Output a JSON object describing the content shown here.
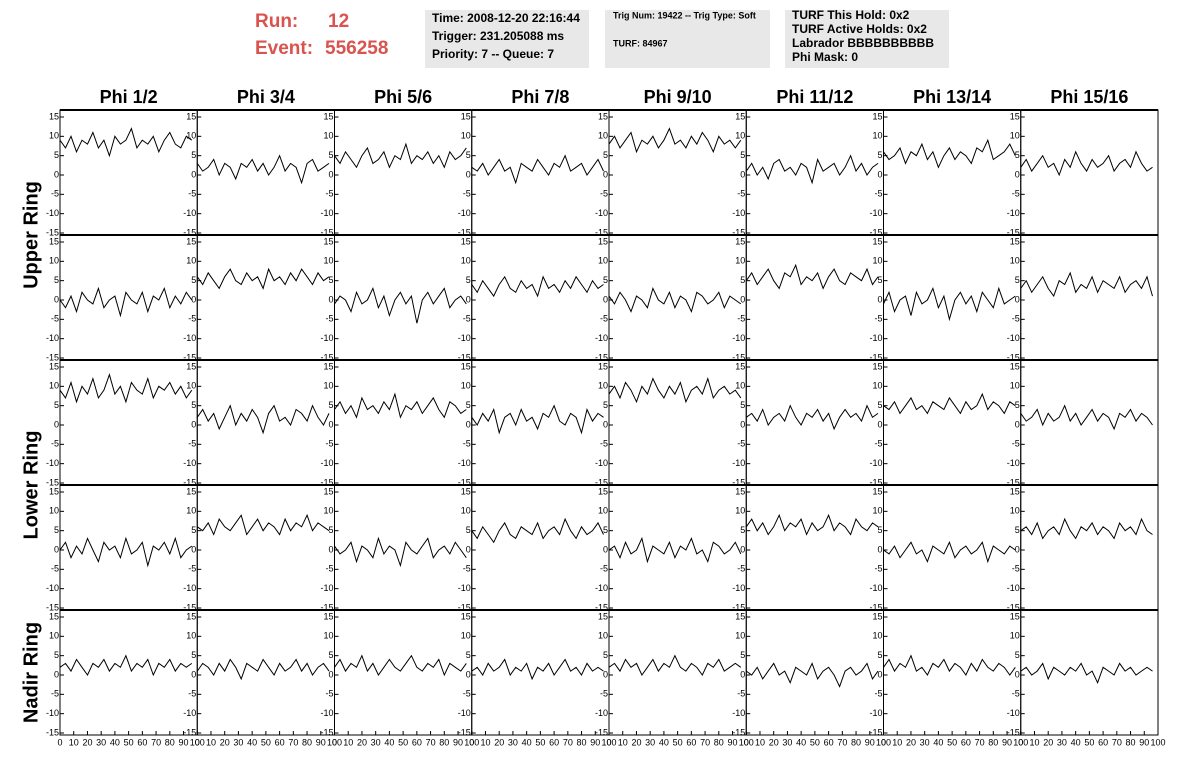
{
  "header": {
    "run_label": "Run:",
    "run": "12",
    "event_label": "Event:",
    "event": "556258",
    "box1": [
      "Time: 2008-12-20 22:16:44",
      "Trigger: 231.205088 ms",
      "Priority: 7 -- Queue: 7"
    ],
    "box2": [
      "Trig Num: 19422 -- Trig Type: Soft",
      "TURF: 84967"
    ],
    "box3": [
      "TURF This Hold: 0x2",
      "TURF Active Holds: 0x2",
      "Labrador BBBBBBBBBB",
      "Phi Mask: 0"
    ]
  },
  "chart_data": {
    "type": "line",
    "columns": [
      "Phi 1/2",
      "Phi 3/4",
      "Phi 5/6",
      "Phi 7/8",
      "Phi 9/10",
      "Phi 11/12",
      "Phi 13/14",
      "Phi 15/16"
    ],
    "ring_labels": [
      "Upper Ring",
      "Lower Ring",
      "Nadir Ring"
    ],
    "x": [
      0,
      4,
      8,
      12,
      16,
      20,
      24,
      28,
      32,
      36,
      40,
      44,
      48,
      52,
      56,
      60,
      64,
      68,
      72,
      76,
      80,
      84,
      88,
      92,
      96
    ],
    "xlim": [
      0,
      100
    ],
    "xticks": [
      0,
      10,
      20,
      30,
      40,
      50,
      60,
      70,
      80,
      90,
      100
    ],
    "ylim": [
      -15,
      15
    ],
    "yticks": [
      -15,
      -10,
      -5,
      0,
      5,
      10,
      15
    ],
    "color": "#000000",
    "panels": [
      {
        "values": [
          9,
          7,
          10,
          6,
          9,
          8,
          11,
          7,
          9,
          5,
          10,
          8,
          9,
          12,
          7,
          9,
          8,
          10,
          6,
          9,
          11,
          8,
          7,
          10,
          9
        ]
      },
      {
        "values": [
          3,
          1,
          2,
          4,
          0,
          3,
          2,
          -1,
          3,
          2,
          4,
          1,
          3,
          0,
          2,
          5,
          1,
          3,
          2,
          -2,
          3,
          4,
          1,
          2,
          3
        ]
      },
      {
        "values": [
          5,
          3,
          6,
          4,
          2,
          5,
          7,
          3,
          4,
          6,
          2,
          5,
          4,
          8,
          3,
          5,
          4,
          6,
          3,
          5,
          2,
          6,
          4,
          5,
          7
        ]
      },
      {
        "values": [
          2,
          1,
          3,
          0,
          2,
          4,
          1,
          2,
          -2,
          3,
          2,
          1,
          4,
          2,
          0,
          3,
          2,
          5,
          1,
          2,
          3,
          0,
          2,
          4,
          1
        ]
      },
      {
        "values": [
          8,
          10,
          7,
          9,
          11,
          6,
          9,
          8,
          10,
          7,
          9,
          12,
          8,
          9,
          7,
          10,
          8,
          11,
          9,
          6,
          10,
          8,
          9,
          7,
          9
        ]
      },
      {
        "values": [
          1,
          3,
          0,
          2,
          -1,
          3,
          4,
          1,
          2,
          0,
          3,
          2,
          -2,
          4,
          1,
          2,
          3,
          0,
          2,
          5,
          1,
          3,
          0,
          2,
          3
        ]
      },
      {
        "values": [
          6,
          4,
          5,
          7,
          3,
          6,
          5,
          8,
          4,
          6,
          2,
          5,
          7,
          4,
          6,
          5,
          3,
          7,
          6,
          9,
          4,
          5,
          6,
          8,
          5
        ]
      },
      {
        "values": [
          2,
          4,
          1,
          3,
          5,
          2,
          3,
          0,
          4,
          2,
          6,
          3,
          1,
          4,
          2,
          3,
          5,
          1,
          3,
          4,
          2,
          6,
          3,
          1,
          2
        ]
      },
      {
        "values": [
          0,
          -2,
          1,
          -3,
          2,
          0,
          -1,
          3,
          -2,
          0,
          1,
          -4,
          2,
          0,
          -1,
          2,
          -3,
          1,
          0,
          3,
          -2,
          1,
          -1,
          2,
          0
        ]
      },
      {
        "values": [
          6,
          4,
          7,
          5,
          3,
          6,
          8,
          5,
          4,
          7,
          5,
          6,
          3,
          8,
          5,
          6,
          4,
          7,
          5,
          8,
          6,
          4,
          7,
          5,
          6
        ]
      },
      {
        "values": [
          -1,
          1,
          0,
          -3,
          2,
          -1,
          0,
          3,
          -2,
          1,
          -4,
          0,
          2,
          -1,
          1,
          -6,
          0,
          2,
          -1,
          1,
          3,
          -2,
          0,
          1,
          -1
        ]
      },
      {
        "values": [
          4,
          2,
          5,
          3,
          1,
          4,
          6,
          3,
          2,
          5,
          3,
          4,
          1,
          6,
          3,
          4,
          2,
          5,
          3,
          6,
          4,
          2,
          5,
          3,
          4
        ]
      },
      {
        "values": [
          1,
          -1,
          2,
          0,
          -3,
          1,
          0,
          -2,
          3,
          0,
          -1,
          2,
          -2,
          1,
          0,
          -3,
          2,
          1,
          -1,
          0,
          2,
          -2,
          1,
          0,
          -1
        ]
      },
      {
        "values": [
          5,
          7,
          4,
          6,
          8,
          5,
          3,
          7,
          6,
          9,
          4,
          6,
          5,
          7,
          3,
          6,
          8,
          5,
          4,
          7,
          6,
          5,
          8,
          4,
          6
        ]
      },
      {
        "values": [
          -1,
          2,
          -3,
          0,
          1,
          -4,
          2,
          -1,
          0,
          3,
          -2,
          1,
          -5,
          0,
          2,
          -1,
          1,
          -3,
          2,
          0,
          -2,
          3,
          -1,
          0,
          1
        ]
      },
      {
        "values": [
          3,
          5,
          2,
          4,
          6,
          3,
          1,
          5,
          4,
          7,
          2,
          4,
          3,
          6,
          2,
          5,
          4,
          3,
          6,
          2,
          4,
          5,
          3,
          6,
          1
        ]
      },
      {
        "values": [
          9,
          7,
          11,
          6,
          10,
          8,
          12,
          7,
          9,
          13,
          8,
          10,
          6,
          11,
          9,
          8,
          12,
          7,
          10,
          9,
          11,
          8,
          10,
          7,
          9
        ]
      },
      {
        "values": [
          2,
          4,
          1,
          3,
          -1,
          2,
          5,
          0,
          3,
          1,
          4,
          2,
          -2,
          3,
          5,
          1,
          2,
          0,
          4,
          3,
          1,
          5,
          2,
          0,
          3
        ]
      },
      {
        "values": [
          4,
          6,
          3,
          5,
          2,
          7,
          4,
          5,
          3,
          6,
          4,
          8,
          2,
          5,
          4,
          6,
          3,
          5,
          7,
          4,
          2,
          6,
          5,
          3,
          4
        ]
      },
      {
        "values": [
          2,
          0,
          3,
          1,
          4,
          -2,
          2,
          3,
          0,
          4,
          1,
          2,
          -1,
          3,
          2,
          5,
          1,
          0,
          3,
          2,
          -2,
          4,
          1,
          3,
          2
        ]
      },
      {
        "values": [
          8,
          10,
          7,
          11,
          9,
          6,
          10,
          8,
          12,
          9,
          7,
          10,
          8,
          11,
          6,
          9,
          10,
          8,
          12,
          7,
          9,
          10,
          8,
          9,
          7
        ]
      },
      {
        "values": [
          2,
          3,
          1,
          4,
          0,
          2,
          3,
          1,
          5,
          2,
          0,
          3,
          2,
          4,
          1,
          3,
          -1,
          2,
          4,
          2,
          3,
          1,
          5,
          2,
          3
        ]
      },
      {
        "values": [
          5,
          4,
          6,
          3,
          5,
          7,
          4,
          5,
          3,
          6,
          5,
          4,
          7,
          5,
          3,
          6,
          4,
          5,
          8,
          4,
          6,
          5,
          3,
          6,
          5
        ]
      },
      {
        "values": [
          3,
          1,
          2,
          4,
          0,
          3,
          1,
          2,
          5,
          1,
          3,
          0,
          2,
          4,
          1,
          3,
          2,
          -1,
          3,
          2,
          4,
          1,
          3,
          2,
          0
        ]
      },
      {
        "values": [
          0,
          2,
          -2,
          1,
          -1,
          3,
          0,
          -3,
          2,
          0,
          1,
          -2,
          3,
          -1,
          0,
          2,
          -4,
          1,
          0,
          2,
          -1,
          3,
          -2,
          0,
          1
        ]
      },
      {
        "values": [
          6,
          5,
          7,
          4,
          8,
          6,
          5,
          7,
          9,
          4,
          6,
          8,
          5,
          7,
          6,
          4,
          8,
          5,
          7,
          6,
          9,
          5,
          7,
          6,
          5
        ]
      },
      {
        "values": [
          1,
          -1,
          0,
          2,
          -3,
          1,
          0,
          -2,
          3,
          -1,
          1,
          0,
          -4,
          2,
          0,
          -1,
          1,
          3,
          -2,
          0,
          1,
          -1,
          2,
          0,
          -2
        ]
      },
      {
        "values": [
          5,
          3,
          6,
          4,
          2,
          5,
          7,
          4,
          3,
          6,
          5,
          4,
          7,
          3,
          5,
          6,
          4,
          8,
          5,
          3,
          6,
          4,
          5,
          7,
          4
        ]
      },
      {
        "values": [
          0,
          1,
          -2,
          2,
          -1,
          0,
          3,
          -3,
          1,
          0,
          -1,
          2,
          -2,
          1,
          0,
          3,
          -1,
          0,
          -3,
          2,
          1,
          -1,
          0,
          2,
          -1
        ]
      },
      {
        "values": [
          6,
          8,
          5,
          7,
          4,
          6,
          9,
          5,
          7,
          6,
          8,
          4,
          7,
          5,
          6,
          9,
          5,
          7,
          6,
          4,
          8,
          6,
          5,
          7,
          6
        ]
      },
      {
        "values": [
          0,
          -1,
          1,
          -2,
          0,
          2,
          -1,
          0,
          -3,
          1,
          0,
          -1,
          2,
          -2,
          0,
          1,
          -1,
          0,
          2,
          -3,
          1,
          0,
          -1,
          1,
          0
        ]
      },
      {
        "values": [
          5,
          6,
          4,
          7,
          3,
          5,
          6,
          4,
          8,
          5,
          3,
          6,
          5,
          7,
          4,
          6,
          5,
          3,
          7,
          5,
          6,
          4,
          8,
          5,
          4
        ]
      },
      {
        "values": [
          2,
          3,
          1,
          4,
          2,
          0,
          3,
          2,
          4,
          1,
          3,
          2,
          5,
          1,
          3,
          2,
          4,
          0,
          3,
          2,
          4,
          1,
          3,
          2,
          3
        ]
      },
      {
        "values": [
          1,
          3,
          2,
          0,
          3,
          1,
          4,
          2,
          -1,
          3,
          2,
          1,
          4,
          2,
          0,
          3,
          1,
          2,
          4,
          1,
          3,
          0,
          2,
          3,
          1
        ]
      },
      {
        "values": [
          2,
          4,
          1,
          3,
          2,
          5,
          1,
          3,
          0,
          2,
          4,
          2,
          1,
          3,
          5,
          2,
          1,
          3,
          2,
          4,
          0,
          3,
          2,
          1,
          3
        ]
      },
      {
        "values": [
          1,
          2,
          0,
          3,
          1,
          2,
          4,
          0,
          2,
          1,
          3,
          -1,
          2,
          1,
          3,
          0,
          2,
          4,
          1,
          2,
          0,
          3,
          1,
          2,
          1
        ]
      },
      {
        "values": [
          2,
          3,
          1,
          4,
          2,
          3,
          0,
          2,
          4,
          1,
          3,
          2,
          5,
          2,
          1,
          3,
          2,
          0,
          3,
          2,
          4,
          1,
          2,
          3,
          2
        ]
      },
      {
        "values": [
          1,
          0,
          2,
          -1,
          1,
          3,
          0,
          1,
          -2,
          2,
          1,
          0,
          3,
          -1,
          1,
          2,
          0,
          -3,
          1,
          2,
          0,
          1,
          3,
          -1,
          1
        ]
      },
      {
        "values": [
          2,
          4,
          1,
          3,
          2,
          5,
          1,
          2,
          0,
          3,
          2,
          4,
          1,
          3,
          2,
          0,
          3,
          1,
          4,
          2,
          1,
          3,
          2,
          0,
          2
        ]
      },
      {
        "values": [
          1,
          2,
          0,
          1,
          3,
          -1,
          2,
          1,
          0,
          2,
          1,
          3,
          0,
          1,
          -2,
          2,
          1,
          0,
          3,
          1,
          2,
          0,
          1,
          2,
          1
        ]
      }
    ]
  }
}
